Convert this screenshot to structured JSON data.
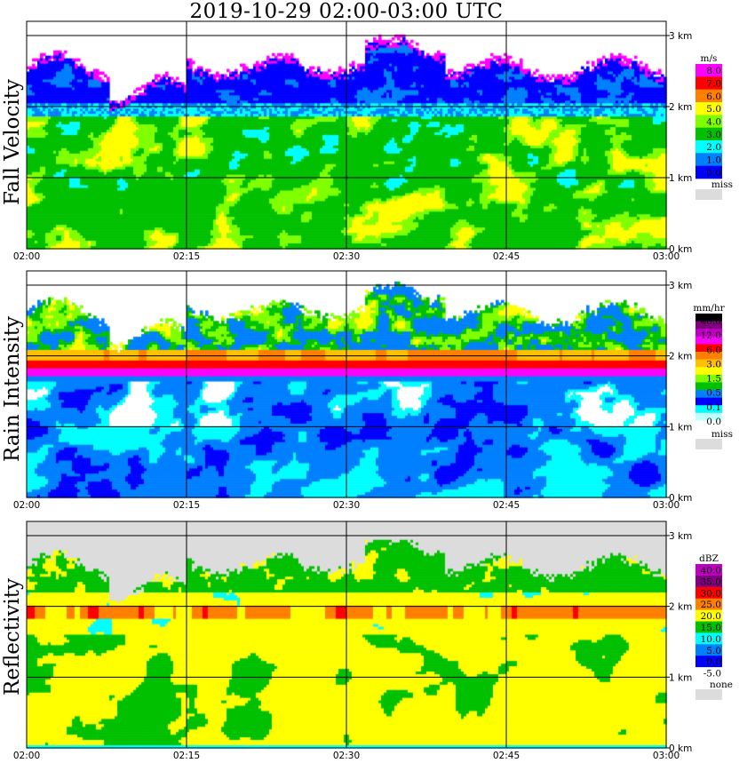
{
  "title": "2019-10-29   02:00-03:00 UTC",
  "chart_data": [
    {
      "type": "heatmap",
      "title": "Fall Velocity",
      "x_ticks": [
        "02:00",
        "02:15",
        "02:30",
        "02:45",
        "03:00"
      ],
      "y_ticks": [
        "0 km",
        "1 km",
        "2 km",
        "3 km"
      ],
      "ylim_km": [
        0,
        3
      ],
      "grid": true,
      "legend": {
        "position": "right",
        "unit": "m/s",
        "labels": [
          "8.0",
          "7.0",
          "6.0",
          "5.0",
          "4.0",
          "3.0",
          "2.0",
          "1.0",
          "0.0"
        ],
        "colors": [
          "#ff00ff",
          "#ff0000",
          "#ff8000",
          "#ffff00",
          "#80ff00",
          "#00c000",
          "#00ffff",
          "#0080ff",
          "#0000ff"
        ],
        "missing_label": "miss",
        "missing_color": "#dcdcdc"
      }
    },
    {
      "type": "heatmap",
      "title": "Rain Intensity",
      "x_ticks": [
        "02:00",
        "02:15",
        "02:30",
        "02:45",
        "03:00"
      ],
      "y_ticks": [
        "0 km",
        "1 km",
        "2 km",
        "3 km"
      ],
      "ylim_km": [
        0,
        3
      ],
      "grid": true,
      "legend": {
        "position": "right",
        "unit": "mm/hr",
        "labels": [
          "48.0",
          "12.0",
          "6.0",
          "3.0",
          "1.5",
          "0.5",
          "0.1",
          "0.0"
        ],
        "colors": [
          "#000000",
          "#800080",
          "#c000c0",
          "#ff00ff",
          "#ff0000",
          "#ff8000",
          "#ffc000",
          "#ffff00",
          "#80ff00",
          "#00c000",
          "#0080ff",
          "#0000ff",
          "#00ffff",
          "#c0ffff",
          "#ffffff"
        ],
        "missing_label": "miss",
        "missing_color": "#dcdcdc"
      }
    },
    {
      "type": "heatmap",
      "title": "Reflectivity",
      "x_ticks": [
        "02:00",
        "02:15",
        "02:30",
        "02:45",
        "03:00"
      ],
      "y_ticks": [
        "0 km",
        "1 km",
        "2 km",
        "3 km"
      ],
      "ylim_km": [
        0,
        3
      ],
      "grid": true,
      "legend": {
        "position": "right",
        "unit": "dBZ",
        "labels": [
          "40.0",
          "35.0",
          "30.0",
          "25.0",
          "20.0",
          "15.0",
          "10.0",
          "5.0",
          "0.0",
          "-5.0"
        ],
        "colors": [
          "#c000c0",
          "#800080",
          "#ff0000",
          "#ff8000",
          "#ffff00",
          "#00c000",
          "#00ffff",
          "#0080ff",
          "#0000ff",
          "#ffffff"
        ],
        "missing_label": "none",
        "missing_color": "#dcdcdc"
      }
    }
  ]
}
